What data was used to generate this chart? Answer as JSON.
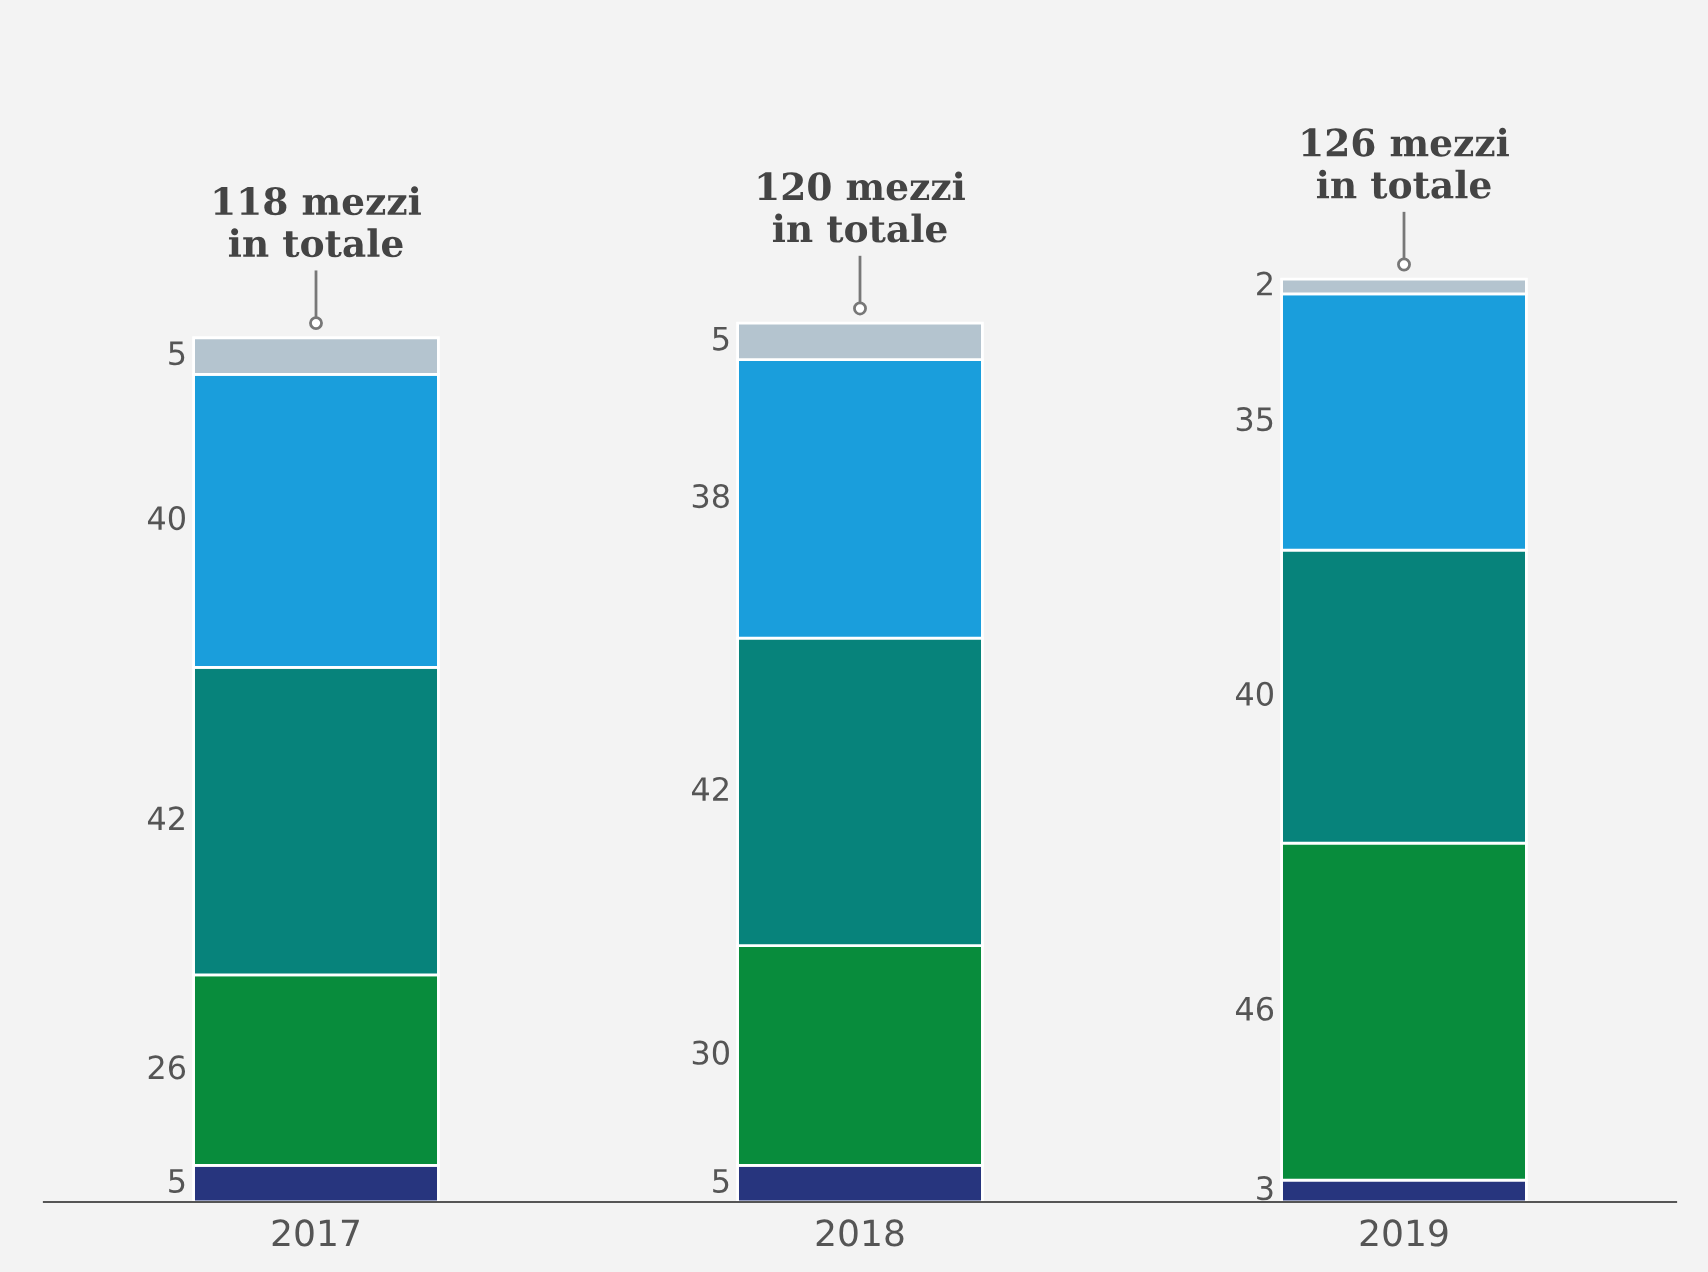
{
  "chart_data": {
    "type": "bar",
    "stacked": true,
    "categories": [
      "2017",
      "2018",
      "2019"
    ],
    "series": [
      {
        "color": "#27357e",
        "values": [
          5,
          5,
          3
        ]
      },
      {
        "color": "#088c3c",
        "values": [
          26,
          30,
          46
        ]
      },
      {
        "color": "#07837b",
        "values": [
          42,
          42,
          40
        ]
      },
      {
        "color": "#1a9edc",
        "values": [
          40,
          38,
          35
        ]
      },
      {
        "color": "#b4c4cf",
        "values": [
          5,
          5,
          2
        ]
      }
    ],
    "totals": [
      "118 mezzi\nin totale",
      "120 mezzi\nin totale",
      "126 mezzi\nin totale"
    ],
    "data_labels": true,
    "grid": false,
    "legend": false
  }
}
